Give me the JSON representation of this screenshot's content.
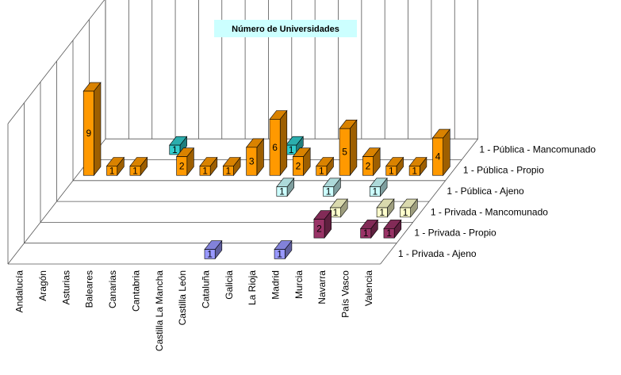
{
  "chart_data": {
    "type": "bar",
    "title": "Número de Universidades",
    "categories": [
      "Andalucía",
      "Aragón",
      "Asturias",
      "Baleares",
      "Canarias",
      "Cantabria",
      "Castilla La Mancha",
      "Castilla León",
      "Cataluña",
      "Galicia",
      "La Rioja",
      "Madrid",
      "Murcia",
      "Navarra",
      "País Vasco",
      "Valencia"
    ],
    "series": [
      {
        "name": "1 - Privada - Ajeno",
        "color": "#9999ff",
        "values": [
          0,
          0,
          0,
          0,
          0,
          0,
          0,
          0,
          1,
          0,
          0,
          1,
          0,
          0,
          0,
          0
        ]
      },
      {
        "name": "1 - Privada - Propio",
        "color": "#993366",
        "values": [
          0,
          0,
          0,
          0,
          0,
          0,
          0,
          0,
          0,
          0,
          0,
          0,
          2,
          0,
          1,
          1
        ]
      },
      {
        "name": "1 - Privada - Mancomunado",
        "color": "#ffffcc",
        "values": [
          0,
          0,
          0,
          0,
          0,
          0,
          0,
          0,
          0,
          0,
          0,
          0,
          1,
          0,
          1,
          1
        ]
      },
      {
        "name": "1 - Pública - Ajeno",
        "color": "#ccffff",
        "values": [
          0,
          0,
          0,
          0,
          0,
          0,
          0,
          0,
          0,
          1,
          0,
          1,
          0,
          1,
          0,
          0
        ]
      },
      {
        "name": "1 - Pública - Propio",
        "color": "#ff9900",
        "values": [
          9,
          1,
          1,
          0,
          2,
          1,
          1,
          3,
          6,
          2,
          1,
          5,
          2,
          1,
          1,
          4
        ]
      },
      {
        "name": "1 - Pública - Mancomunado",
        "color": "#33cccc",
        "values": [
          0,
          0,
          0,
          1,
          0,
          0,
          0,
          0,
          1,
          0,
          0,
          0,
          0,
          0,
          0,
          0
        ]
      }
    ],
    "grid": true,
    "legend": "right-depth-axis"
  }
}
